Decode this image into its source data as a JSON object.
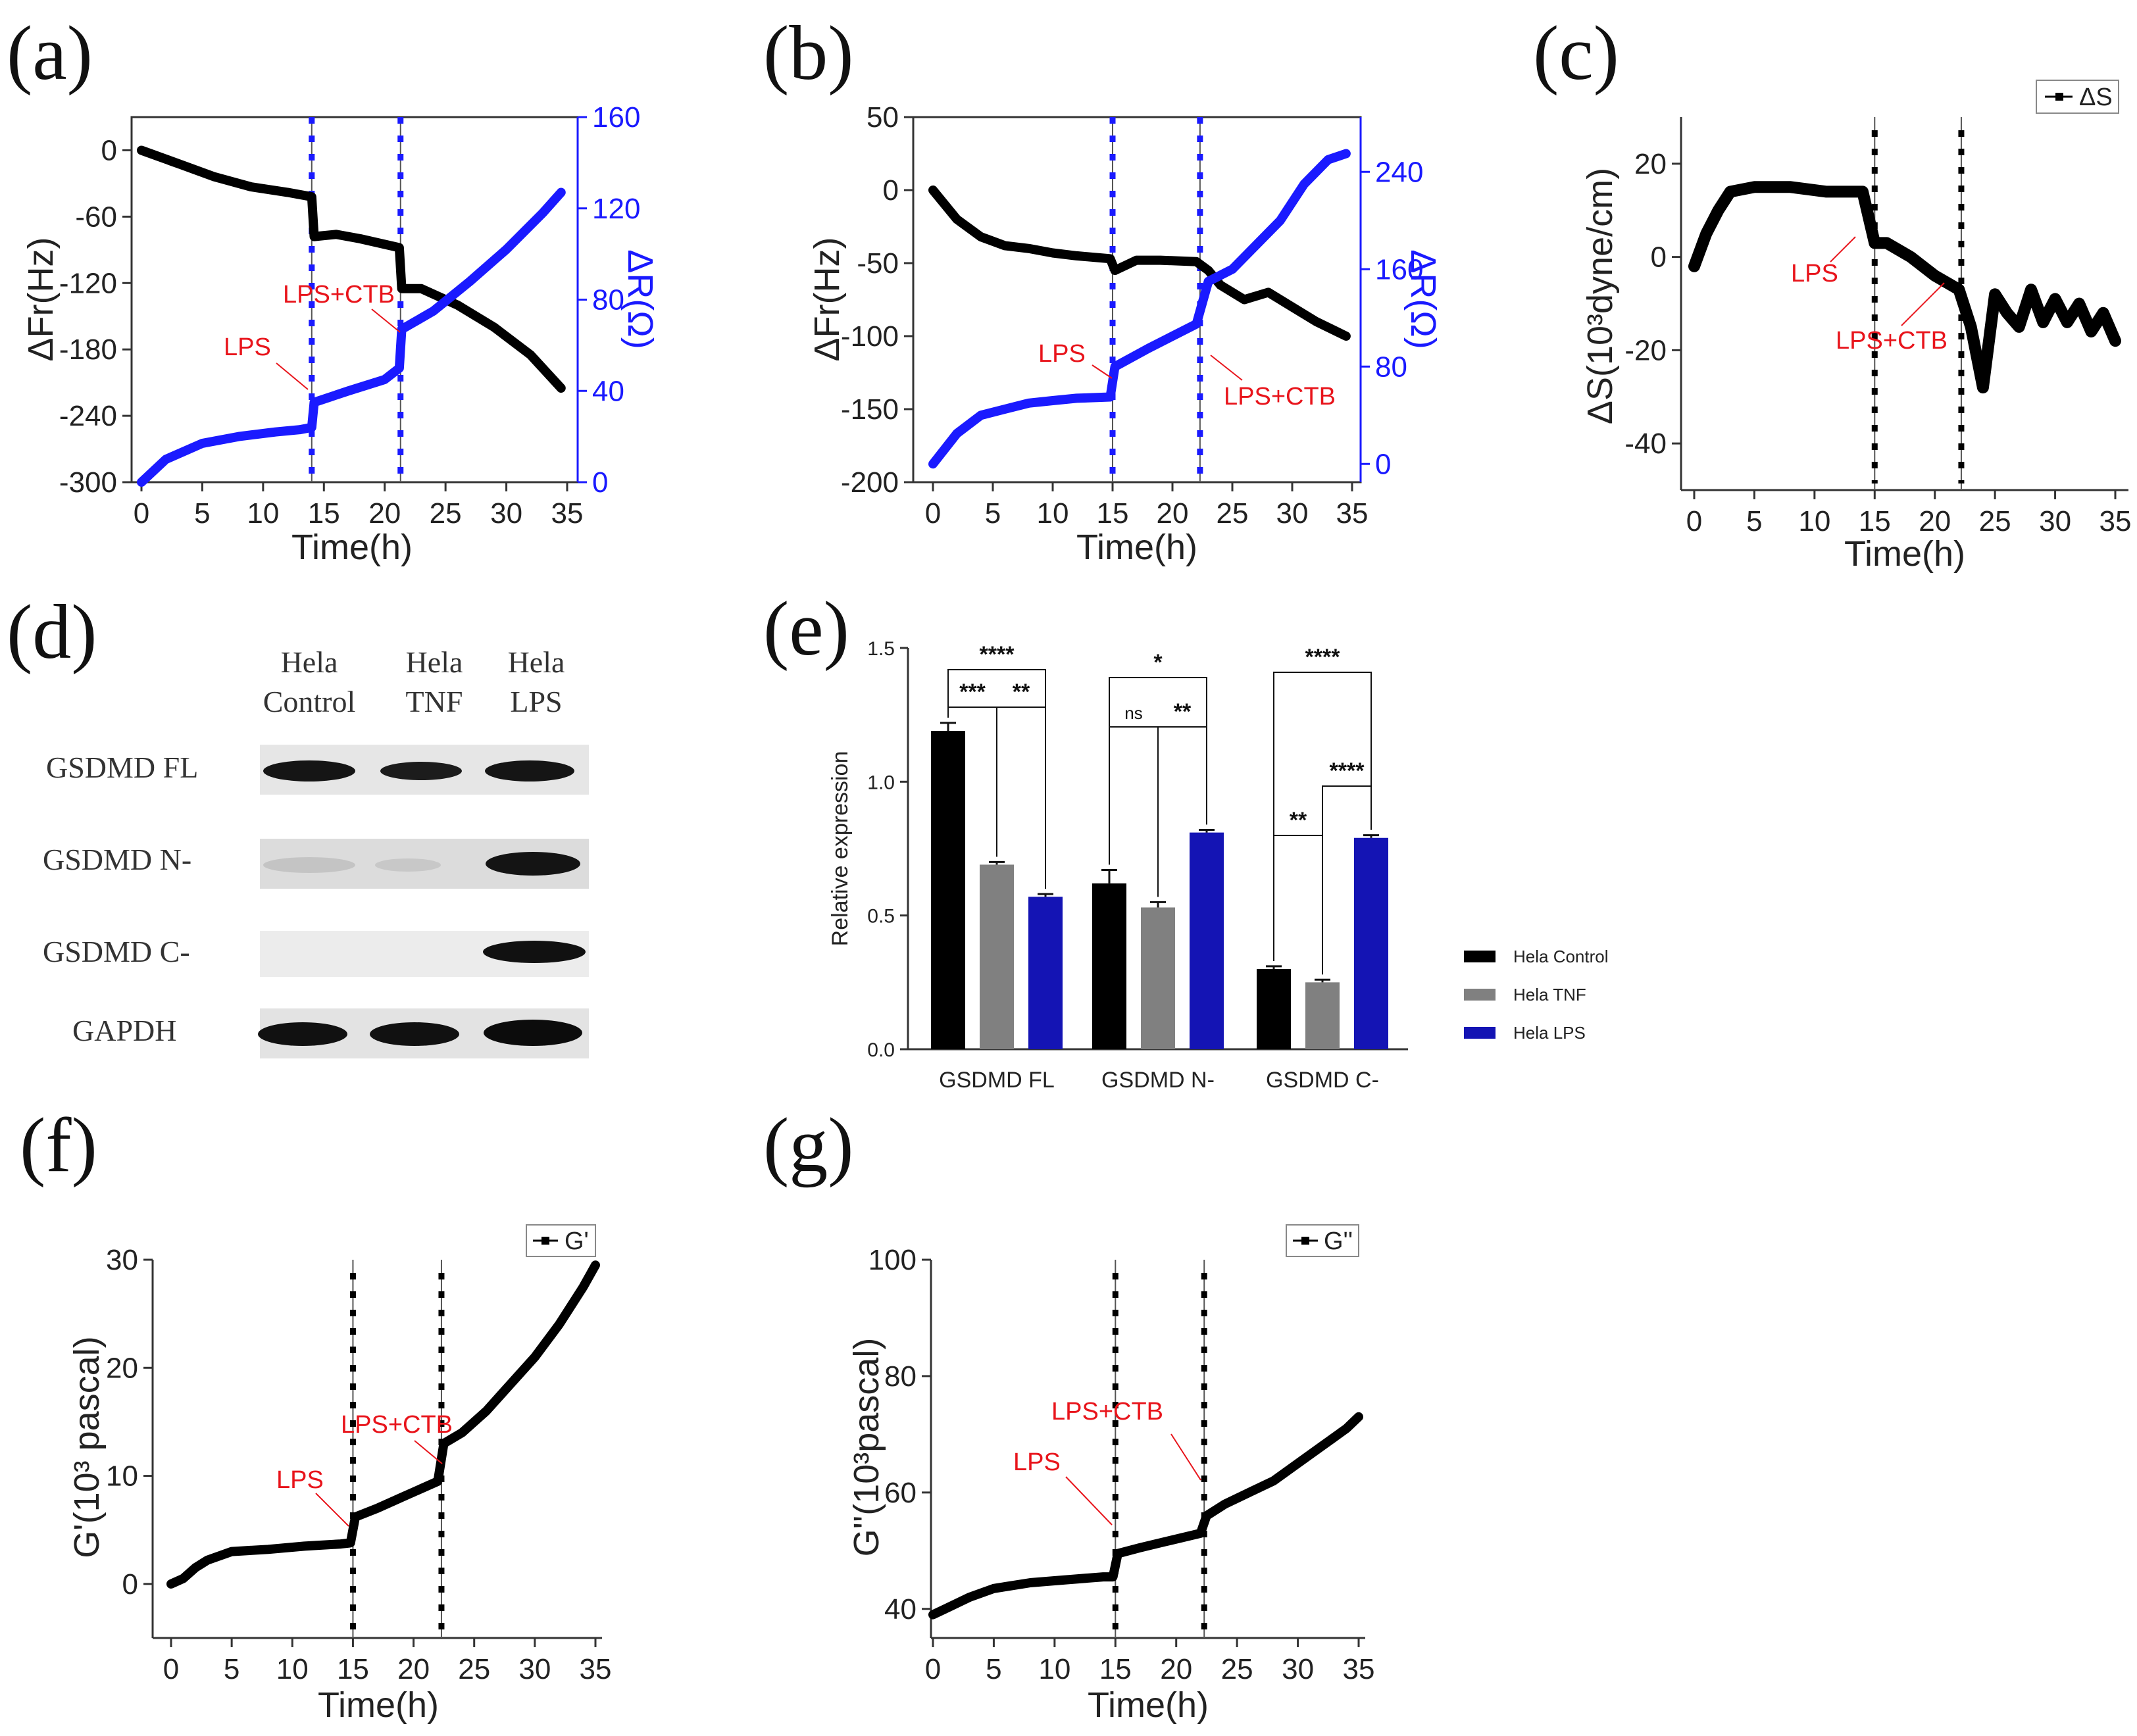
{
  "colors": {
    "black_series": "#000000",
    "blue_series": "#1a1aff",
    "annotation": "#e8141b",
    "bar_control": "#000000",
    "bar_tnf": "#808080",
    "bar_lps": "#1414b4"
  },
  "panels": {
    "a": {
      "label": "(a)",
      "annotations": [
        "LPS",
        "LPS+CTB"
      ]
    },
    "b": {
      "label": "(b)",
      "annotations": [
        "LPS",
        "LPS+CTB"
      ]
    },
    "c": {
      "label": "(c)",
      "annotations": [
        "LPS",
        "LPS+CTB"
      ],
      "legend": "ΔS"
    },
    "d": {
      "label": "(d)",
      "col_line1": [
        "Hela",
        "Hela",
        "Hela"
      ],
      "col_line2": [
        "Control",
        "TNF",
        "LPS"
      ],
      "rows": [
        "GSDMD FL",
        "GSDMD N-",
        "GSDMD C-",
        "GAPDH"
      ]
    },
    "e": {
      "label": "(e)"
    },
    "f": {
      "label": "(f)",
      "annotations": [
        "LPS",
        "LPS+CTB"
      ],
      "legend": "G'"
    },
    "g": {
      "label": "(g)",
      "annotations": [
        "LPS",
        "LPS+CTB"
      ],
      "legend": "G''"
    }
  },
  "chart_data": [
    {
      "id": "a",
      "type": "line",
      "title": "",
      "xlabel": "Time(h)",
      "ylabel": "ΔFr(Hz)",
      "y2label": "ΔR(Ω)",
      "xlim": [
        0,
        35
      ],
      "ylim": [
        -300,
        30
      ],
      "y2lim": [
        0,
        160
      ],
      "xticks": [
        "0",
        "5",
        "10",
        "15",
        "20",
        "25",
        "30",
        "35"
      ],
      "yticks": [
        "-300",
        "-240",
        "-180",
        "-120",
        "-60",
        "0"
      ],
      "y2ticks": [
        "0",
        "40",
        "80",
        "120",
        "160"
      ],
      "events_h": [
        14,
        21.3
      ],
      "series": [
        {
          "name": "ΔFr",
          "axis": "left",
          "x": [
            0,
            3,
            6,
            9,
            12,
            14,
            14.2,
            16,
            18,
            21.2,
            21.4,
            23,
            26,
            29,
            32,
            34.5
          ],
          "y": [
            0,
            -12,
            -24,
            -33,
            -38,
            -42,
            -78,
            -76,
            -80,
            -88,
            -125,
            -125,
            -140,
            -160,
            -185,
            -215
          ]
        },
        {
          "name": "ΔR",
          "axis": "right",
          "x": [
            0,
            2,
            5,
            8,
            11,
            13,
            14,
            14.2,
            17,
            20,
            21.2,
            21.4,
            24,
            27,
            30,
            33,
            34.5
          ],
          "y": [
            0,
            10,
            17,
            20,
            22,
            23,
            24,
            35,
            40,
            45,
            50,
            67,
            75,
            88,
            102,
            118,
            127
          ]
        }
      ]
    },
    {
      "id": "b",
      "type": "line",
      "title": "",
      "xlabel": "Time(h)",
      "ylabel": "ΔFr(Hz)",
      "y2label": "ΔR(Ω)",
      "xlim": [
        0,
        35
      ],
      "ylim": [
        -200,
        50
      ],
      "y2lim": [
        -15,
        285
      ],
      "xticks": [
        "0",
        "5",
        "10",
        "15",
        "20",
        "25",
        "30",
        "35"
      ],
      "yticks": [
        "-200",
        "-150",
        "-100",
        "-50",
        "0",
        "50"
      ],
      "y2ticks": [
        "0",
        "80",
        "160",
        "240"
      ],
      "events_h": [
        15,
        22.3
      ],
      "series": [
        {
          "name": "ΔFr",
          "axis": "left",
          "x": [
            0,
            2,
            4,
            6,
            8,
            10,
            12,
            14.8,
            15.2,
            17,
            19,
            22,
            23,
            24,
            26,
            28,
            30,
            32,
            34.5
          ],
          "y": [
            0,
            -20,
            -32,
            -38,
            -40,
            -43,
            -45,
            -47,
            -55,
            -48,
            -48,
            -49,
            -55,
            -65,
            -75,
            -70,
            -80,
            -90,
            -100
          ]
        },
        {
          "name": "ΔR",
          "axis": "right",
          "x": [
            0,
            2,
            4,
            6,
            8,
            10,
            12,
            14.8,
            15.2,
            18,
            22,
            23,
            25,
            27,
            29,
            31,
            33,
            34.5
          ],
          "y": [
            0,
            25,
            40,
            45,
            50,
            52,
            54,
            55,
            80,
            95,
            115,
            150,
            160,
            180,
            200,
            230,
            250,
            255
          ]
        }
      ]
    },
    {
      "id": "c",
      "type": "line",
      "title": "",
      "xlabel": "Time(h)",
      "ylabel": "ΔS(10³dyne/cm)",
      "xlim": [
        0,
        35
      ],
      "ylim": [
        -50,
        30
      ],
      "xticks": [
        "0",
        "5",
        "10",
        "15",
        "20",
        "25",
        "30",
        "35"
      ],
      "yticks": [
        "-40",
        "-20",
        "0",
        "20"
      ],
      "events_h": [
        15,
        22.2
      ],
      "series": [
        {
          "name": "ΔS",
          "x": [
            0,
            1,
            2,
            3,
            5,
            8,
            11,
            14,
            15,
            16,
            18,
            20,
            22,
            23,
            24,
            25,
            26,
            27,
            28,
            29,
            30,
            31,
            32,
            33,
            34,
            35
          ],
          "y": [
            -2,
            5,
            10,
            14,
            15,
            15,
            14,
            14,
            3,
            3,
            0,
            -4,
            -7,
            -15,
            -28,
            -8,
            -12,
            -15,
            -7,
            -14,
            -9,
            -14,
            -10,
            -16,
            -12,
            -18
          ]
        }
      ]
    },
    {
      "id": "e",
      "type": "bar",
      "title": "",
      "xlabel": "",
      "ylabel": "Relative expression",
      "ylim": [
        0,
        1.5
      ],
      "yticks": [
        "0.0",
        "0.5",
        "1.0",
        "1.5"
      ],
      "categories": [
        "GSDMD FL",
        "GSDMD N-",
        "GSDMD C-"
      ],
      "series": [
        {
          "name": "Hela Control",
          "values": [
            1.19,
            0.62,
            0.3
          ],
          "errors": [
            0.03,
            0.05,
            0.01
          ]
        },
        {
          "name": "Hela TNF",
          "values": [
            0.69,
            0.53,
            0.25
          ],
          "errors": [
            0.01,
            0.02,
            0.01
          ]
        },
        {
          "name": "Hela LPS",
          "values": [
            0.57,
            0.81,
            0.79
          ],
          "errors": [
            0.01,
            0.01,
            0.01
          ]
        }
      ],
      "significance": [
        {
          "group": "GSDMD FL",
          "pair": "Control-TNF",
          "label": "***",
          "level": "low"
        },
        {
          "group": "GSDMD FL",
          "pair": "TNF-LPS",
          "label": "**",
          "level": "low"
        },
        {
          "group": "GSDMD FL",
          "pair": "Control-LPS",
          "label": "****",
          "level": "high"
        },
        {
          "group": "GSDMD N-",
          "pair": "Control-TNF",
          "label": "ns",
          "level": "low"
        },
        {
          "group": "GSDMD N-",
          "pair": "TNF-LPS",
          "label": "**",
          "level": "low"
        },
        {
          "group": "GSDMD N-",
          "pair": "Control-LPS",
          "label": "*",
          "level": "high"
        },
        {
          "group": "GSDMD C-",
          "pair": "Control-TNF",
          "label": "**",
          "level": "low"
        },
        {
          "group": "GSDMD C-",
          "pair": "TNF-LPS",
          "label": "****",
          "level": "low"
        },
        {
          "group": "GSDMD C-",
          "pair": "Control-LPS",
          "label": "****",
          "level": "high"
        }
      ]
    },
    {
      "id": "f",
      "type": "line",
      "title": "",
      "xlabel": "Time(h)",
      "ylabel": "G'(10³ pascal)",
      "xlim": [
        0,
        35
      ],
      "ylim": [
        -5,
        30
      ],
      "xticks": [
        "0",
        "5",
        "10",
        "15",
        "20",
        "25",
        "30",
        "35"
      ],
      "yticks": [
        "0",
        "10",
        "20",
        "30"
      ],
      "events_h": [
        15,
        22.3
      ],
      "series": [
        {
          "name": "G'",
          "x": [
            0,
            1,
            2,
            3,
            5,
            8,
            11,
            14,
            14.8,
            15.2,
            17,
            19,
            22,
            22.5,
            24,
            26,
            28,
            30,
            32,
            34,
            35
          ],
          "y": [
            0,
            0.5,
            1.5,
            2.2,
            3,
            3.2,
            3.5,
            3.7,
            3.8,
            6.2,
            7,
            8,
            9.5,
            13,
            14,
            16,
            18.5,
            21,
            24,
            27.5,
            29.5
          ]
        }
      ]
    },
    {
      "id": "g",
      "type": "line",
      "title": "",
      "xlabel": "Time(h)",
      "ylabel": "G''(10³pascal)",
      "xlim": [
        0,
        35
      ],
      "ylim": [
        35,
        100
      ],
      "xticks": [
        "0",
        "5",
        "10",
        "15",
        "20",
        "25",
        "30",
        "35"
      ],
      "yticks": [
        "40",
        "60",
        "80",
        "100"
      ],
      "events_h": [
        15,
        22.3
      ],
      "series": [
        {
          "name": "G''",
          "x": [
            0,
            1,
            3,
            5,
            8,
            11,
            14,
            14.8,
            15.2,
            17,
            19,
            22,
            22.5,
            24,
            26,
            28,
            30,
            32,
            34,
            35
          ],
          "y": [
            39,
            40,
            42,
            43.5,
            44.5,
            45,
            45.5,
            45.5,
            49.5,
            50.5,
            51.5,
            53,
            56,
            58,
            60,
            62,
            65,
            68,
            71,
            73
          ]
        }
      ]
    }
  ]
}
